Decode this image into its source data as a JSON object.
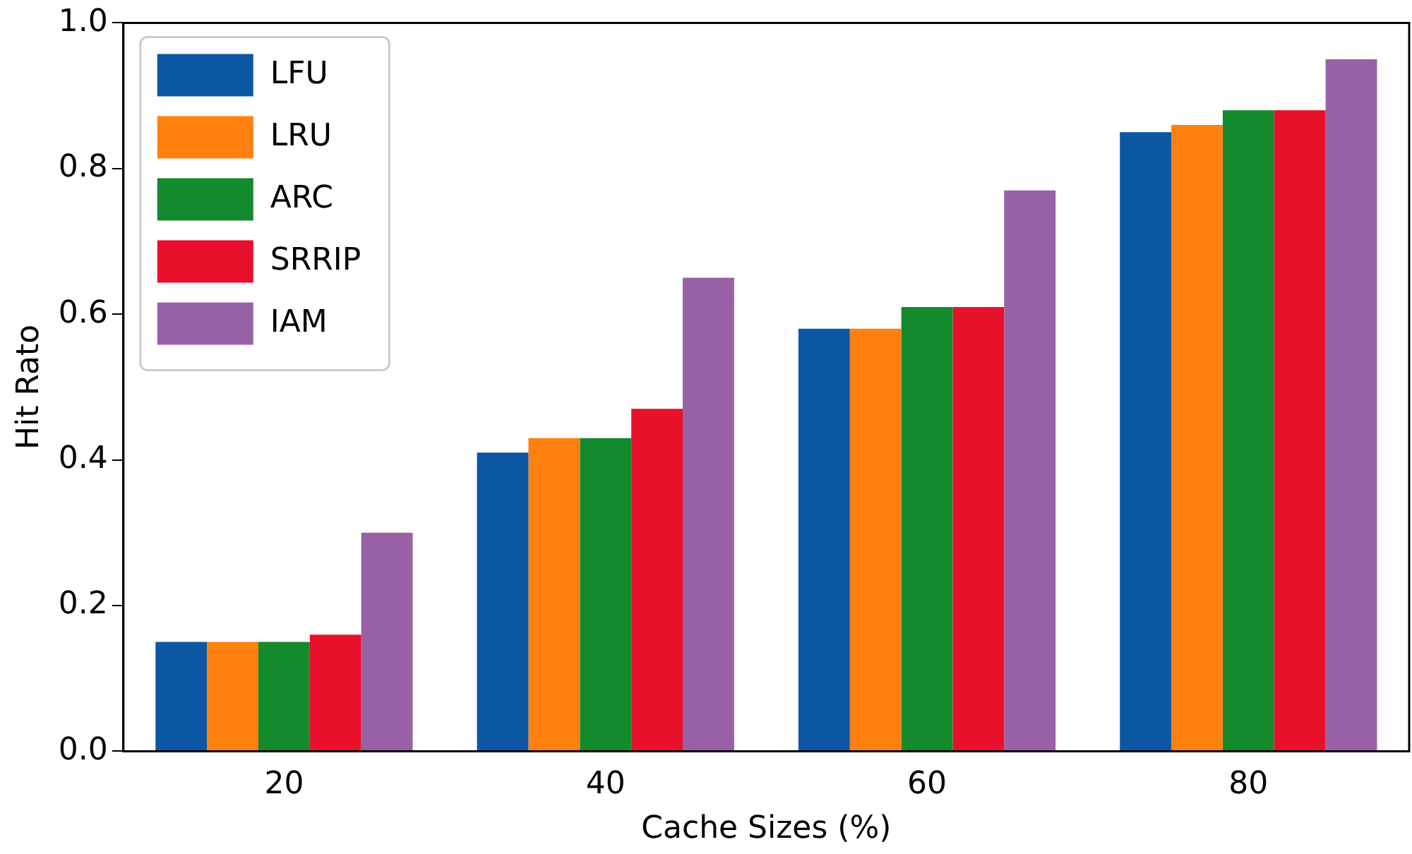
{
  "chart_data": {
    "type": "bar",
    "xlabel": "Cache Sizes (%)",
    "ylabel": "Hit Rato",
    "categories": [
      "20",
      "40",
      "60",
      "80"
    ],
    "series": [
      {
        "name": "LFU",
        "color": "#0b57a4",
        "values": [
          0.15,
          0.41,
          0.58,
          0.85
        ]
      },
      {
        "name": "LRU",
        "color": "#ff800e",
        "values": [
          0.15,
          0.43,
          0.58,
          0.86
        ]
      },
      {
        "name": "ARC",
        "color": "#138a2c",
        "values": [
          0.15,
          0.43,
          0.61,
          0.88
        ]
      },
      {
        "name": "SRRIP",
        "color": "#e8102a",
        "values": [
          0.16,
          0.47,
          0.61,
          0.88
        ]
      },
      {
        "name": "IAM",
        "color": "#9a62a6",
        "values": [
          0.3,
          0.65,
          0.77,
          0.95
        ]
      }
    ],
    "ylim": [
      0,
      1
    ],
    "yticks": [
      {
        "value": 0,
        "label": "0.0"
      },
      {
        "value": 0.2,
        "label": "0.2"
      },
      {
        "value": 0.4,
        "label": "0.4"
      },
      {
        "value": 0.6,
        "label": "0.6"
      },
      {
        "value": 0.8,
        "label": "0.8"
      },
      {
        "value": 1,
        "label": "1.0"
      }
    ],
    "grid": false,
    "legend": "top left"
  }
}
